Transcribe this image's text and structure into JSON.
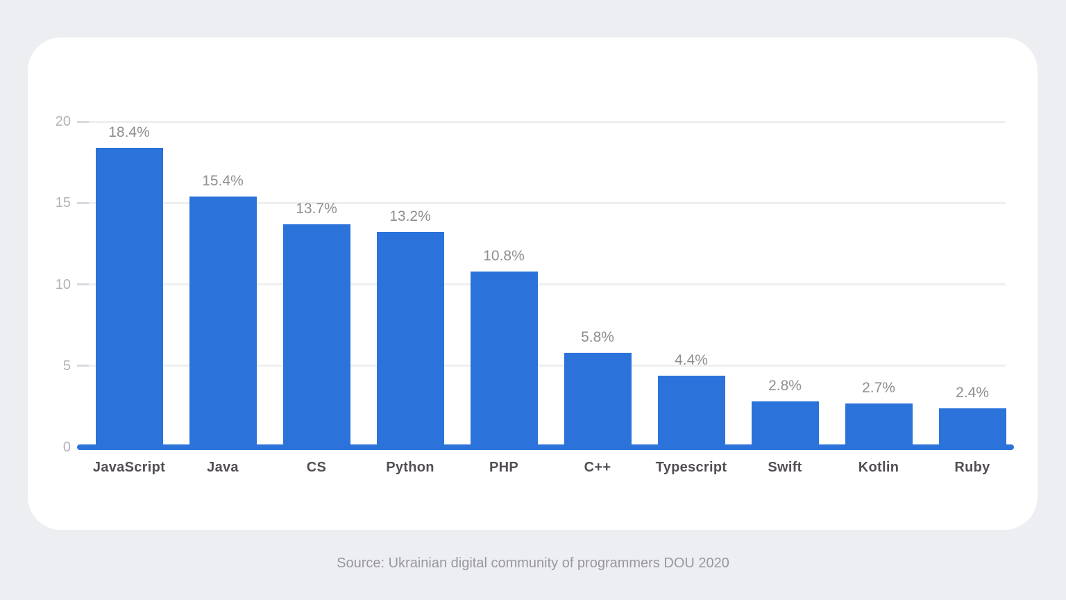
{
  "page": {
    "background_color": "#edeef2",
    "card_color": "#ffffff"
  },
  "chart_data": {
    "type": "bar",
    "title": "",
    "xlabel": "",
    "ylabel": "",
    "categories": [
      "JavaScript",
      "Java",
      "CS",
      "Python",
      "PHP",
      "C++",
      "Typescript",
      "Swift",
      "Kotlin",
      "Ruby"
    ],
    "values": [
      18.4,
      15.4,
      13.7,
      13.2,
      10.8,
      5.8,
      4.4,
      2.8,
      2.7,
      2.4
    ],
    "value_labels": [
      "18.4%",
      "15.4%",
      "13.7%",
      "13.2%",
      "10.8%",
      "5.8%",
      "4.4%",
      "2.8%",
      "2.7%",
      "2.4%"
    ],
    "ylim": [
      0,
      20
    ],
    "yticks": [
      0,
      5,
      10,
      15,
      20
    ],
    "grid": true,
    "legend": null,
    "bar_color": "#2b73db",
    "baseline_color": "#2b73db",
    "gridline_color": "#efeff2",
    "tick_mark_color": "#d9d9dd",
    "ytick_text_color": "#b2b2b7",
    "value_label_color": "#8e8e92",
    "category_label_color": "#534e54"
  },
  "footer": {
    "source_text": "Source: Ukrainian digital community of programmers DOU 2020",
    "color": "#97979d"
  }
}
